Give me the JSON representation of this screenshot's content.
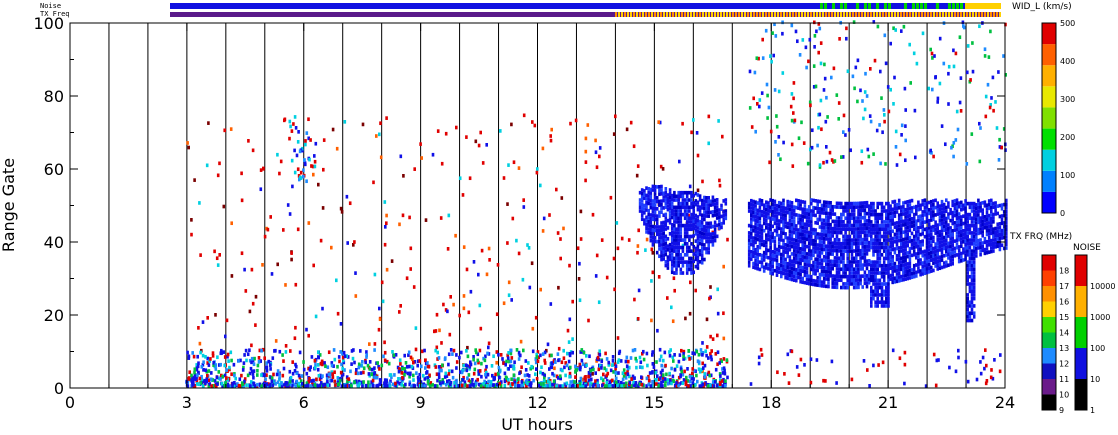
{
  "chart_data": {
    "type": "heatmap",
    "title": "",
    "xlabel": "UT hours",
    "ylabel": "Range Gate",
    "xlim": [
      0,
      24
    ],
    "ylim": [
      0,
      100
    ],
    "xticks": [
      0,
      3,
      6,
      9,
      12,
      15,
      18,
      21,
      24
    ],
    "xtick_labels": [
      "0",
      "3",
      "6",
      "9",
      "12",
      "15",
      "18",
      "21",
      "24"
    ],
    "yticks": [
      0,
      20,
      40,
      60,
      80,
      100
    ],
    "ytick_labels": [
      "0",
      "20",
      "40",
      "60",
      "80",
      "100"
    ],
    "scan_boundaries_hours": [
      1.0,
      2.0,
      3.0,
      4.0,
      5.0,
      6.0,
      7.0,
      8.0,
      9.0,
      10.0,
      11.0,
      12.0,
      13.0,
      14.0,
      15.0,
      16.0,
      17.0,
      18.0,
      19.0,
      20.0,
      21.0,
      22.0,
      23.0
    ],
    "data_gap_hours": [
      0,
      2.95
    ],
    "scatter_regions": [
      {
        "name": "sparse echoes",
        "t_start": 2.95,
        "t_end": 16.9,
        "gate_min": 0,
        "gate_max": 75,
        "dominant": "red"
      },
      {
        "name": "near-range clutter",
        "t_start": 2.95,
        "t_end": 16.9,
        "gate_min": 0,
        "gate_max": 10,
        "dominant": "blue"
      },
      {
        "name": "band 1",
        "t_start": 14.6,
        "t_end": 16.8,
        "gate_min": 32,
        "gate_max": 55,
        "dominant": "blue"
      },
      {
        "name": "band 2",
        "t_start": 17.4,
        "t_end": 24.0,
        "gate_min": 26,
        "gate_max": 55,
        "dominant": "blue"
      },
      {
        "name": "upper echoes",
        "t_start": 17.4,
        "t_end": 24.0,
        "gate_min": 60,
        "gate_max": 100,
        "dominant": "blue"
      }
    ],
    "panels": {
      "noise_label": "Noise",
      "txfreq_label": "TX Freq"
    },
    "colorbars": [
      {
        "name": "velocity_width",
        "title": "WID_L (km/s)",
        "ticks": [
          "0",
          "100",
          "200",
          "300",
          "400",
          "500"
        ],
        "colors": [
          "#0000ff",
          "#0080ff",
          "#00d0e0",
          "#00e000",
          "#80e000",
          "#e8e800",
          "#ffb000",
          "#ff6000",
          "#e00000"
        ]
      },
      {
        "name": "tx_frequency",
        "title": "TX FRQ (MHz)",
        "ticks": [
          "9",
          "10",
          "11",
          "12",
          "13",
          "14",
          "15",
          "16",
          "17",
          "18"
        ],
        "colors": [
          "#000000",
          "#6a1b8a",
          "#1010c0",
          "#1e8bff",
          "#00c040",
          "#40e000",
          "#ffd000",
          "#ff9000",
          "#ff4000",
          "#e00000"
        ]
      },
      {
        "name": "noise",
        "title": "NOISE",
        "ticks": [
          "1",
          "10",
          "100",
          "1000",
          "10000"
        ],
        "colors": [
          "#000000",
          "#1010e0",
          "#00d000",
          "#ffb000",
          "#e00000"
        ]
      }
    ]
  }
}
